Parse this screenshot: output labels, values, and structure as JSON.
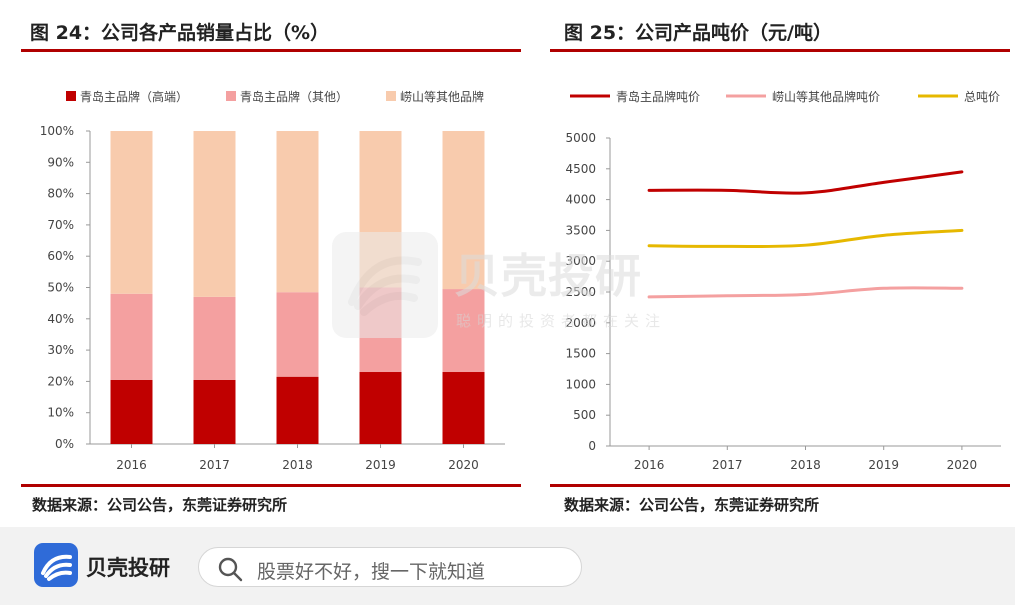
{
  "left": {
    "title": "图 24：公司各产品销量占比（%）",
    "source": "数据来源：公司公告，东莞证券研究所",
    "chart_data": {
      "type": "bar",
      "stacked": true,
      "categories": [
        "2016",
        "2017",
        "2018",
        "2019",
        "2020"
      ],
      "series": [
        {
          "name": "青岛主品牌（高端）",
          "color": "#c00000",
          "values": [
            20.5,
            20.5,
            21.5,
            23,
            23
          ]
        },
        {
          "name": "青岛主品牌（其他）",
          "color": "#f4a0a0",
          "values": [
            27.5,
            26.5,
            27,
            27,
            26.5
          ]
        },
        {
          "name": "崂山等其他品牌",
          "color": "#f8cbad",
          "values": [
            52,
            53,
            51.5,
            50,
            50.5
          ]
        }
      ],
      "ylim": [
        0,
        100
      ],
      "yticks": [
        "0%",
        "10%",
        "20%",
        "30%",
        "40%",
        "50%",
        "60%",
        "70%",
        "80%",
        "90%",
        "100%"
      ],
      "legend": "top",
      "grid": false
    }
  },
  "right": {
    "title": "图 25：公司产品吨价（元/吨）",
    "source": "数据来源：公司公告，东莞证券研究所",
    "chart_data": {
      "type": "line",
      "x": [
        "2016",
        "2017",
        "2018",
        "2019",
        "2020"
      ],
      "series": [
        {
          "name": "青岛主品牌吨价",
          "color": "#c00000",
          "values": [
            4150,
            4150,
            4110,
            4280,
            4450
          ]
        },
        {
          "name": "崂山等其他品牌吨价",
          "color": "#f4a0a0",
          "values": [
            2420,
            2440,
            2460,
            2560,
            2560
          ]
        },
        {
          "name": "总吨价",
          "color": "#e6b800",
          "values": [
            3250,
            3240,
            3260,
            3420,
            3500
          ]
        }
      ],
      "ylim": [
        0,
        5000
      ],
      "yticks": [
        "0",
        "500",
        "1000",
        "1500",
        "2000",
        "2500",
        "3000",
        "3500",
        "4000",
        "4500",
        "5000"
      ],
      "legend": "top",
      "grid": false
    }
  },
  "watermark": {
    "title": "贝壳投研",
    "subtitle": "聪明的投资者都在关注"
  },
  "footer": {
    "logo_text": "贝壳投研",
    "search_placeholder": "股票好不好，搜一下就知道",
    "brand_color": "#2f6bd8"
  }
}
